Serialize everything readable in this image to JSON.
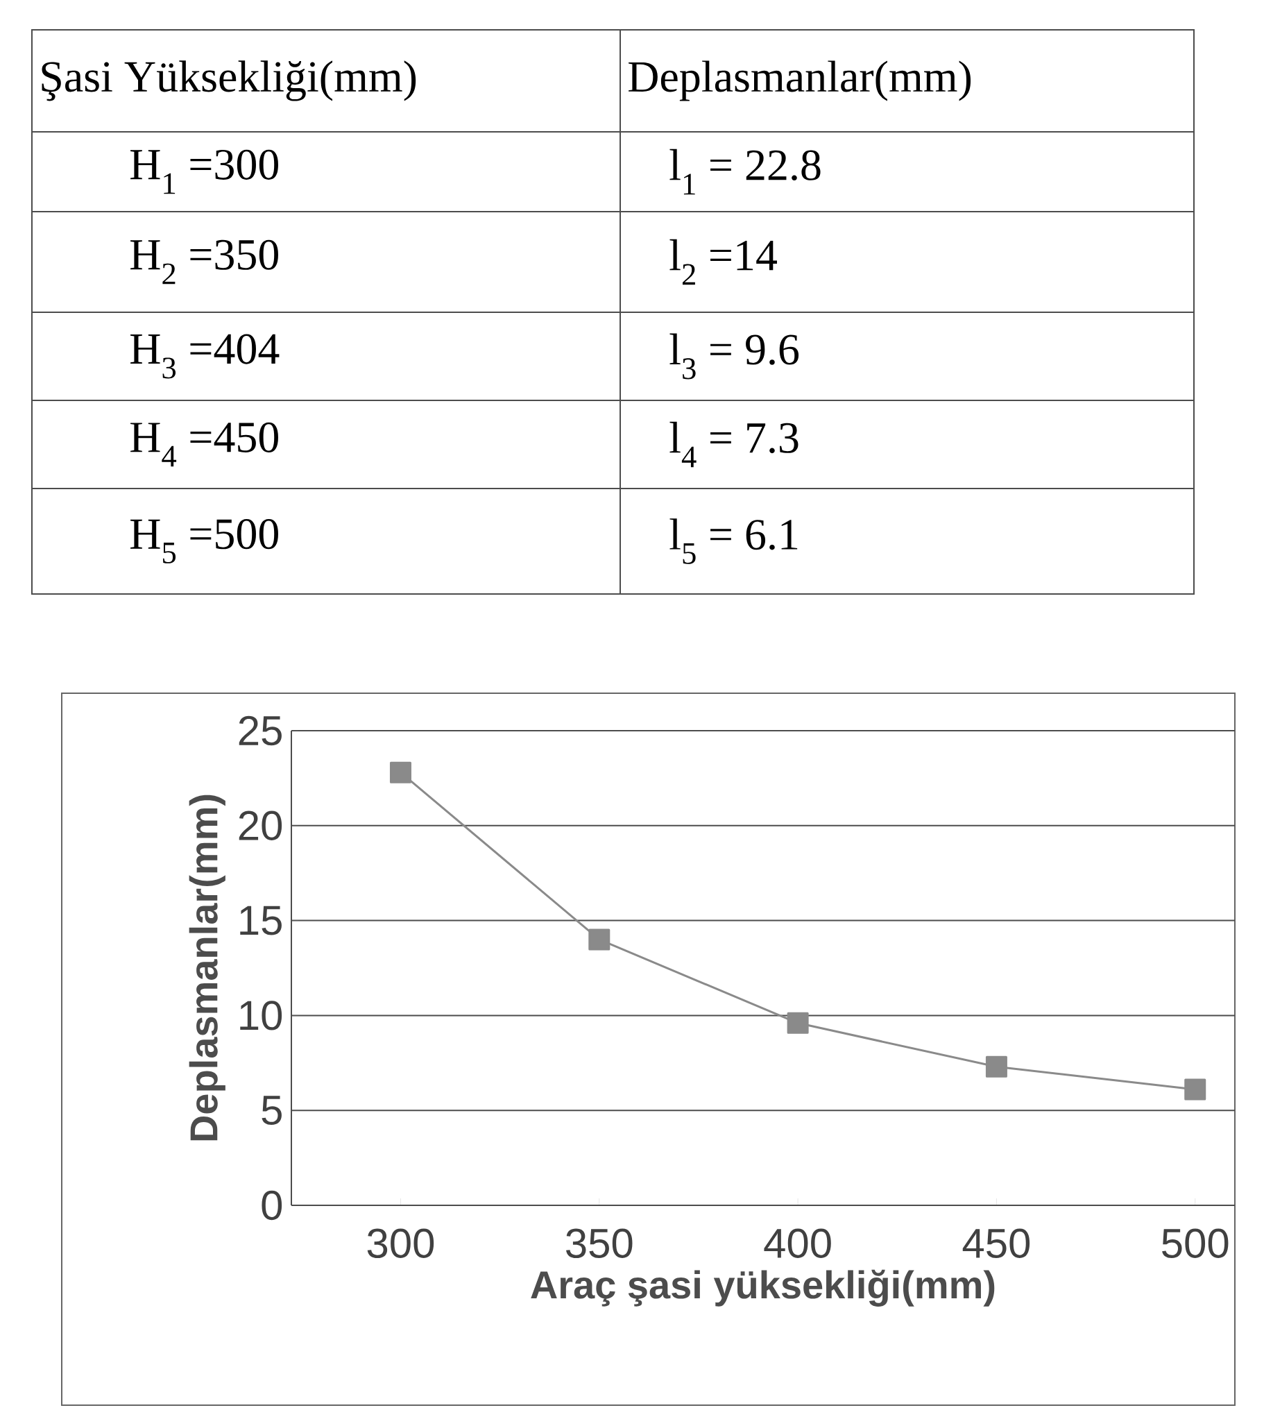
{
  "chart_data": {
    "type": "line",
    "xlabel": "Araç şasi yüksekliği(mm)",
    "ylabel": "Deplasmanlar(mm)",
    "categories": [
      "300",
      "350",
      "400",
      "450",
      "500"
    ],
    "values": [
      22.8,
      14,
      9.6,
      7.3,
      6.1
    ],
    "color": "#8a8a8a",
    "marker": "square",
    "ylim": [
      0,
      25
    ],
    "yticks": [
      0,
      5,
      10,
      15,
      20,
      25
    ],
    "grid": "y",
    "annotations": [
      "Şasi Yüksekliği(mm)",
      "Deplasmanlar(mm)",
      "H$_{1}$ =300",
      "l$_{1}$ = 22.8",
      "H$_{2}$ =350",
      "l$_{2}$ =14",
      "H$_{3}$ =404",
      "l$_{3}$ = 9.6",
      "H$_{4}$ =450",
      "l$_{4}$ = 7.3",
      "H$_{5}$ =500",
      "l$_{5}$ = 6.1"
    ]
  }
}
